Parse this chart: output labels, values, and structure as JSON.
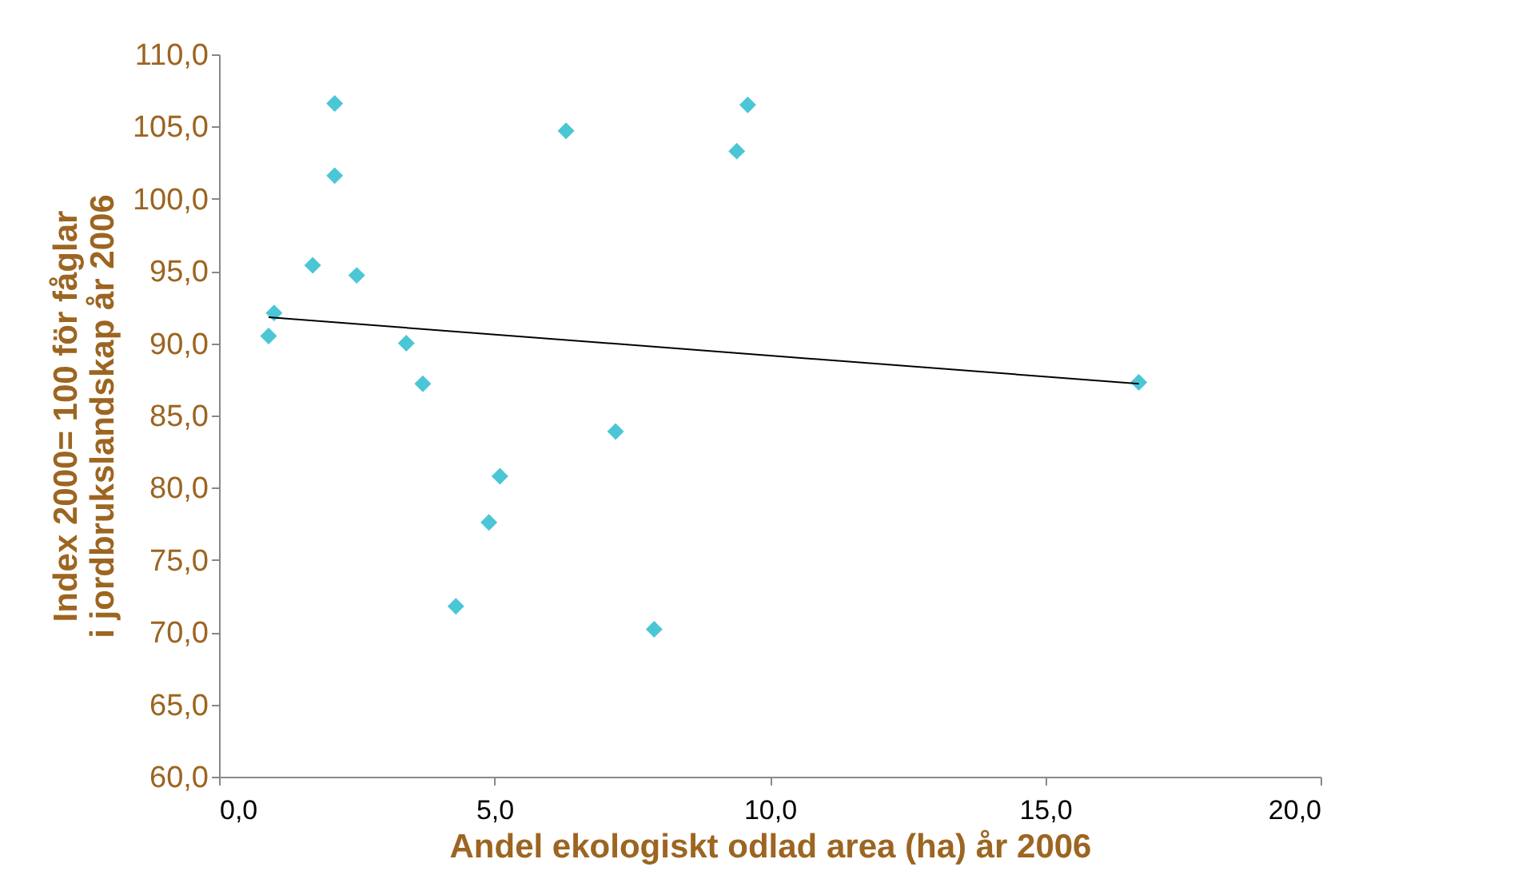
{
  "chart_data": {
    "type": "scatter",
    "xlabel": "Andel ekologiskt odlad area (ha) år 2006",
    "ylabel": "Index 2000= 100 för fåglar i jordbrukslandskap år 2006",
    "xlim": [
      0,
      20
    ],
    "xticks": [
      {
        "value": 0,
        "label": "0,0"
      },
      {
        "value": 5,
        "label": "5,0"
      },
      {
        "value": 10,
        "label": "10,0"
      },
      {
        "value": 15,
        "label": "15,0"
      },
      {
        "value": 20,
        "label": "20,0"
      }
    ],
    "ylim": [
      60,
      110
    ],
    "yticks": [
      {
        "value": 60,
        "label": "60,0"
      },
      {
        "value": 65,
        "label": "65,0"
      },
      {
        "value": 70,
        "label": "70,0"
      },
      {
        "value": 75,
        "label": "75,0"
      },
      {
        "value": 80,
        "label": "80,0"
      },
      {
        "value": 85,
        "label": "85,0"
      },
      {
        "value": 90,
        "label": "90,0"
      },
      {
        "value": 95,
        "label": "95,0"
      },
      {
        "value": 100,
        "label": "100,0"
      },
      {
        "value": 105,
        "label": "105,0"
      },
      {
        "value": 110,
        "label": "110,0"
      }
    ],
    "grid": false,
    "marker": "diamond",
    "series": [
      {
        "color": "#4bc6d6",
        "x": [
          2.1,
          2.1,
          1.7,
          2.5,
          1.0,
          0.9,
          3.4,
          3.7,
          6.3,
          9.6,
          9.4,
          7.2,
          5.1,
          4.9,
          4.3,
          7.9,
          16.7
        ],
        "values": [
          106.6,
          101.6,
          95.4,
          94.7,
          92.1,
          90.5,
          90.0,
          87.2,
          104.7,
          106.5,
          103.3,
          83.9,
          80.8,
          77.6,
          71.8,
          70.2,
          87.3
        ]
      },
      {
        "type": "line",
        "color": "#000000",
        "marker": "none",
        "x": [
          0.9,
          16.7
        ],
        "values": [
          91.8,
          87.2
        ]
      }
    ]
  }
}
